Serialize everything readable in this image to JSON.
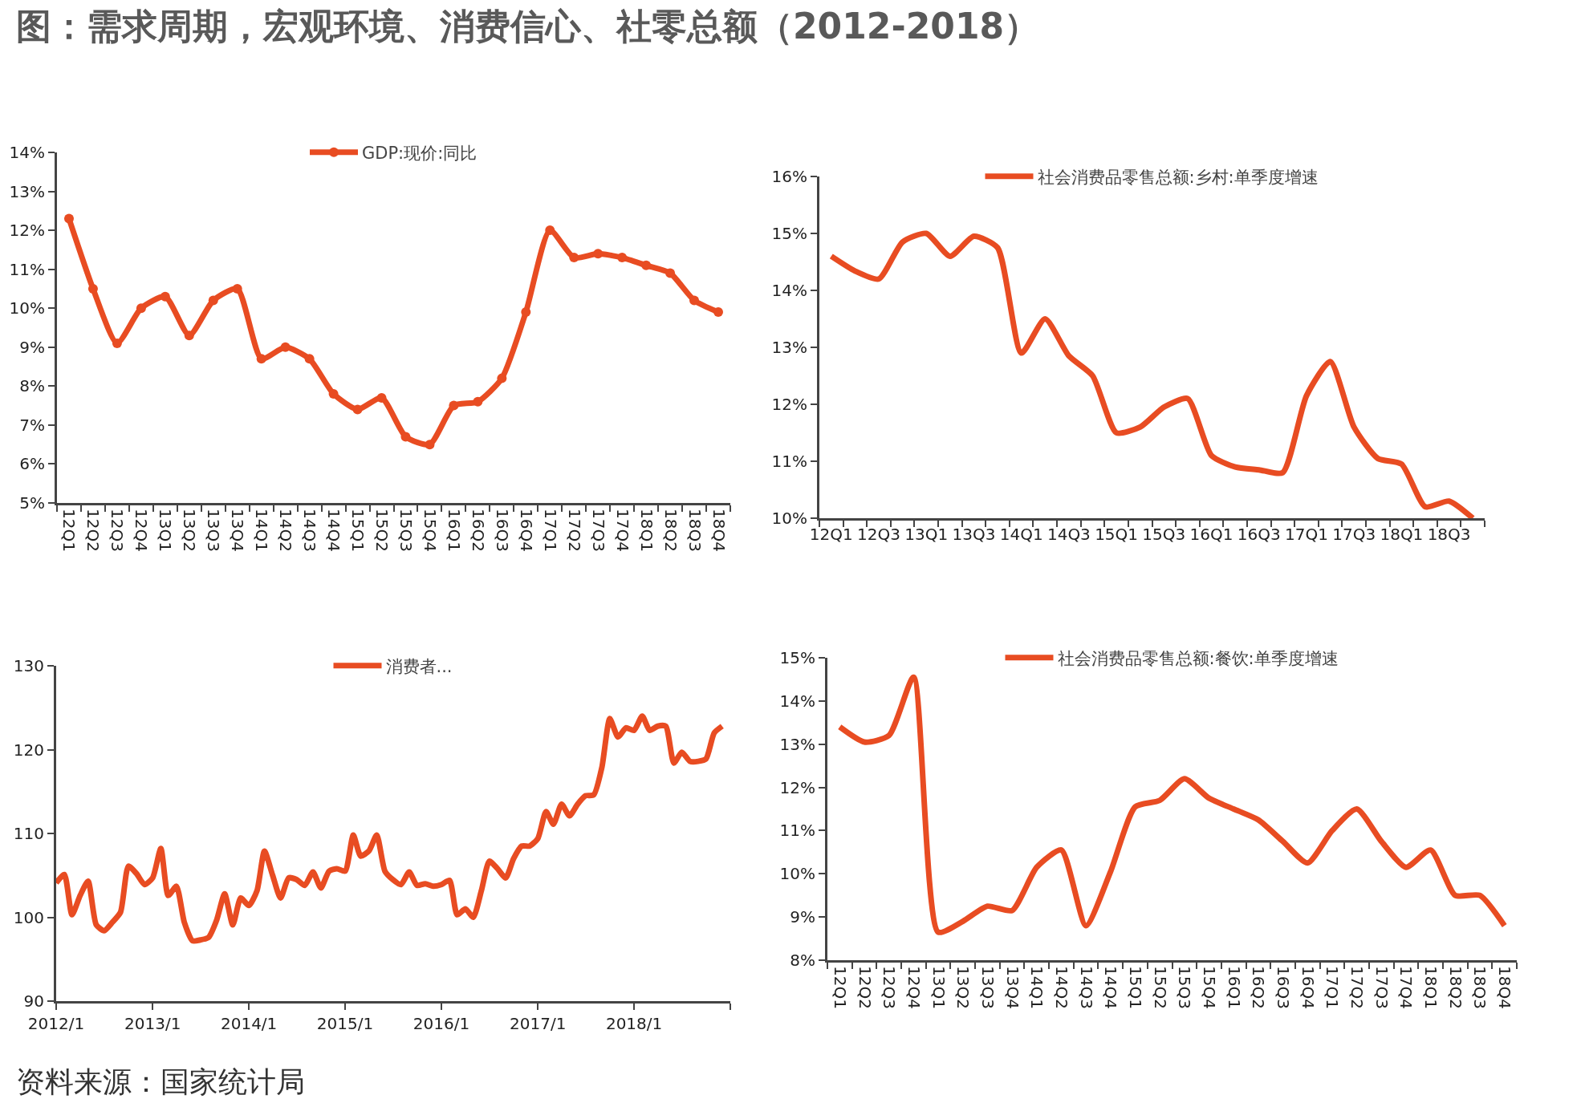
{
  "chart_data": [
    {
      "type": "line",
      "title": "图：需求周期，宏观环境、消费信心、社零总额（2012-2018）",
      "categories": [
        "12Q1",
        "12Q2",
        "12Q3",
        "12Q4",
        "13Q1",
        "13Q2",
        "13Q3",
        "13Q4",
        "14Q1",
        "14Q2",
        "14Q3",
        "14Q4",
        "15Q1",
        "15Q2",
        "15Q3",
        "15Q4",
        "16Q1",
        "16Q2",
        "16Q3",
        "16Q4",
        "17Q1",
        "17Q2",
        "17Q3",
        "17Q4",
        "18Q1",
        "18Q2",
        "18Q3",
        "18Q4"
      ],
      "series": [
        {
          "name": "GDP:现价:同比",
          "color": "#e84c22",
          "values": [
            12.3,
            10.5,
            9.1,
            10.0,
            10.3,
            9.3,
            10.2,
            10.5,
            8.7,
            9.0,
            8.7,
            7.8,
            7.4,
            7.7,
            6.7,
            6.5,
            7.5,
            7.6,
            8.2,
            9.9,
            12.0,
            11.3,
            11.4,
            11.3,
            11.1,
            10.9,
            10.2,
            9.9
          ]
        }
      ],
      "ylim": [
        5,
        14
      ],
      "yticks": [
        {
          "value": 5,
          "label": "5%"
        },
        {
          "value": 6,
          "label": "6%"
        },
        {
          "value": 7,
          "label": "7%"
        },
        {
          "value": 8,
          "label": "8%"
        },
        {
          "value": 9,
          "label": "9%"
        },
        {
          "value": 10,
          "label": "10%"
        },
        {
          "value": 11,
          "label": "11%"
        },
        {
          "value": 12,
          "label": "12%"
        },
        {
          "value": 13,
          "label": "13%"
        },
        {
          "value": 14,
          "label": "14%"
        }
      ],
      "legend": "top",
      "marker": "circle"
    },
    {
      "type": "line",
      "categories": [
        "12Q1",
        null,
        "12Q3",
        null,
        "13Q1",
        null,
        "13Q3",
        null,
        "14Q1",
        null,
        "14Q3",
        null,
        "15Q1",
        null,
        "15Q3",
        null,
        "16Q1",
        null,
        "16Q3",
        null,
        "17Q1",
        null,
        "17Q3",
        null,
        "18Q1",
        null,
        "18Q3",
        null
      ],
      "series": [
        {
          "name": "社会消费品零售总额:乡村:单季度增速",
          "color": "#e84c22",
          "values": [
            14.6,
            14.34,
            14.2,
            14.85,
            15.0,
            14.6,
            14.95,
            14.75,
            12.9,
            13.5,
            12.85,
            12.5,
            11.5,
            11.6,
            11.95,
            12.1,
            11.1,
            10.9,
            10.85,
            10.8,
            12.15,
            12.75,
            11.6,
            11.05,
            10.95,
            10.2,
            10.3,
            10.0
          ]
        }
      ],
      "ylim": [
        10,
        16
      ],
      "yticks": [
        {
          "value": 10,
          "label": "10%"
        },
        {
          "value": 11,
          "label": "11%"
        },
        {
          "value": 12,
          "label": "12%"
        },
        {
          "value": 13,
          "label": "13%"
        },
        {
          "value": 14,
          "label": "14%"
        },
        {
          "value": 15,
          "label": "15%"
        },
        {
          "value": 16,
          "label": "16%"
        }
      ],
      "legend": "top"
    },
    {
      "type": "line",
      "x": [
        "2012-01",
        "2012-02",
        "2012-03",
        "2012-04",
        "2012-05",
        "2012-06",
        "2012-07",
        "2012-08",
        "2012-09",
        "2012-10",
        "2012-11",
        "2012-12",
        "2013-01",
        "2013-02",
        "2013-03",
        "2013-04",
        "2013-05",
        "2013-06",
        "2013-07",
        "2013-08",
        "2013-09",
        "2013-10",
        "2013-11",
        "2013-12",
        "2014-01",
        "2014-02",
        "2014-03",
        "2014-04",
        "2014-05",
        "2014-06",
        "2014-07",
        "2014-08",
        "2014-09",
        "2014-10",
        "2014-11",
        "2014-12",
        "2015-01",
        "2015-02",
        "2015-03",
        "2015-04",
        "2015-05",
        "2015-06",
        "2015-07",
        "2015-08",
        "2015-09",
        "2015-10",
        "2015-11",
        "2015-12",
        "2016-01",
        "2016-02",
        "2016-03",
        "2016-04",
        "2016-05",
        "2016-06",
        "2016-07",
        "2016-08",
        "2016-09",
        "2016-10",
        "2016-11",
        "2016-12",
        "2017-01",
        "2017-02",
        "2017-03",
        "2017-04",
        "2017-05",
        "2017-06",
        "2017-07",
        "2017-08",
        "2017-09",
        "2017-10",
        "2017-11",
        "2017-12",
        "2018-01",
        "2018-02",
        "2018-03",
        "2018-04",
        "2018-05",
        "2018-06",
        "2018-07",
        "2018-08",
        "2018-09",
        "2018-10",
        "2018-11",
        "2018-12"
      ],
      "series": [
        {
          "name": "消费者...",
          "color": "#e84c22",
          "values": [
            104.1,
            105.1,
            100.3,
            102.6,
            104.3,
            99.1,
            98.4,
            99.4,
            100.6,
            106.1,
            105.2,
            103.9,
            104.7,
            108.2,
            102.6,
            103.7,
            99.4,
            97.2,
            97.3,
            97.6,
            99.7,
            102.8,
            99.1,
            102.3,
            101.4,
            103.2,
            107.9,
            105.0,
            102.3,
            104.7,
            104.5,
            103.8,
            105.4,
            103.5,
            105.5,
            105.8,
            105.5,
            109.8,
            107.3,
            107.9,
            109.8,
            105.5,
            104.5,
            103.9,
            105.4,
            103.8,
            104.0,
            103.7,
            103.9,
            104.4,
            100.3,
            101.0,
            100.0,
            103.2,
            106.7,
            105.8,
            104.7,
            107.0,
            108.5,
            108.5,
            109.4,
            112.6,
            111.1,
            113.5,
            112.1,
            113.5,
            114.5,
            114.6,
            117.9,
            123.7,
            121.5,
            122.6,
            122.3,
            124.0,
            122.3,
            122.8,
            122.8,
            118.4,
            119.7,
            118.6,
            118.6,
            118.9,
            122.0,
            122.8
          ]
        }
      ],
      "xlim": [
        "2012-01",
        "2019-01"
      ],
      "xticks": [
        {
          "value": "2012-01",
          "label": "2012/1"
        },
        {
          "value": "2013-01",
          "label": "2013/1"
        },
        {
          "value": "2014-01",
          "label": "2014/1"
        },
        {
          "value": "2015-01",
          "label": "2015/1"
        },
        {
          "value": "2016-01",
          "label": "2016/1"
        },
        {
          "value": "2017-01",
          "label": "2017/1"
        },
        {
          "value": "2018-01",
          "label": "2018/1"
        },
        {
          "value": "2019-01",
          "label": null
        }
      ],
      "ylim": [
        90,
        130
      ],
      "yticks": [
        90,
        100,
        110,
        120,
        130
      ],
      "legend": "top"
    },
    {
      "type": "line",
      "categories": [
        "12Q1",
        "12Q2",
        "12Q3",
        "12Q4",
        "13Q1",
        "13Q2",
        "13Q3",
        "13Q4",
        "14Q1",
        "14Q2",
        "14Q3",
        "14Q4",
        "15Q1",
        "15Q2",
        "15Q3",
        "15Q4",
        "16Q1",
        "16Q2",
        "16Q3",
        "16Q4",
        "17Q1",
        "17Q2",
        "17Q3",
        "17Q4",
        "18Q1",
        "18Q2",
        "18Q3",
        "18Q4"
      ],
      "series": [
        {
          "name": "社会消费品零售总额:餐饮:单季度增速",
          "color": "#e84c22",
          "values": [
            13.4,
            13.05,
            13.2,
            14.55,
            8.65,
            8.9,
            9.25,
            9.15,
            10.15,
            10.55,
            8.8,
            10.05,
            11.55,
            11.7,
            12.2,
            11.75,
            11.5,
            11.25,
            10.75,
            10.25,
            11.0,
            11.5,
            10.75,
            10.15,
            10.55,
            9.5,
            9.5,
            8.8
          ]
        }
      ],
      "ylim": [
        8,
        15
      ],
      "yticks": [
        {
          "value": 8,
          "label": "8%"
        },
        {
          "value": 9,
          "label": "9%"
        },
        {
          "value": 10,
          "label": "10%"
        },
        {
          "value": 11,
          "label": "11%"
        },
        {
          "value": 12,
          "label": "12%"
        },
        {
          "value": 13,
          "label": "13%"
        },
        {
          "value": 14,
          "label": "14%"
        },
        {
          "value": 15,
          "label": "15%"
        }
      ],
      "legend": "top",
      "annotations": [
        "资料来源：国家统计局"
      ]
    }
  ]
}
